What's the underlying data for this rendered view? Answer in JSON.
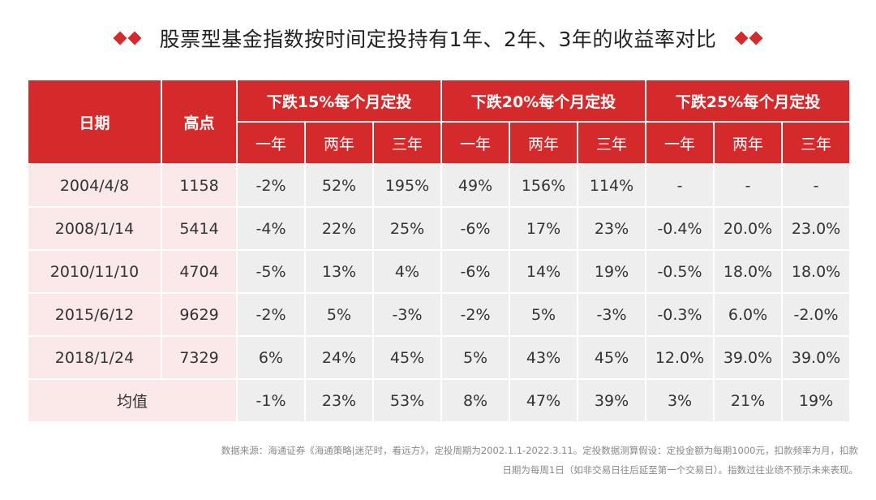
{
  "title": "股票型基金指数按时间定投持有1年、2年、3年的收益率对比",
  "table": {
    "col_date": "日期",
    "col_high": "高点",
    "groups": [
      "下跌15%每个月定投",
      "下跌20%每个月定投",
      "下跌25%每个月定投"
    ],
    "periods": [
      "一年",
      "两年",
      "三年"
    ],
    "rows": [
      {
        "date": "2004/4/8",
        "high": "1158",
        "values": [
          "-2%",
          "52%",
          "195%",
          "49%",
          "156%",
          "114%",
          "-",
          "-",
          "-"
        ]
      },
      {
        "date": "2008/1/14",
        "high": "5414",
        "values": [
          "-4%",
          "22%",
          "25%",
          "-6%",
          "17%",
          "23%",
          "-0.4%",
          "20.0%",
          "23.0%"
        ]
      },
      {
        "date": "2010/11/10",
        "high": "4704",
        "values": [
          "-5%",
          "13%",
          "4%",
          "-6%",
          "14%",
          "19%",
          "-0.5%",
          "18.0%",
          "18.0%"
        ]
      },
      {
        "date": "2015/6/12",
        "high": "9629",
        "values": [
          "-2%",
          "5%",
          "-3%",
          "-2%",
          "5%",
          "-3%",
          "-0.3%",
          "6.0%",
          "-2.0%"
        ]
      },
      {
        "date": "2018/1/24",
        "high": "7329",
        "values": [
          "6%",
          "24%",
          "45%",
          "5%",
          "43%",
          "45%",
          "12.0%",
          "39.0%",
          "39.0%"
        ]
      }
    ],
    "average": {
      "label": "均值",
      "values": [
        "-1%",
        "23%",
        "53%",
        "8%",
        "47%",
        "39%",
        "3%",
        "21%",
        "19%"
      ]
    }
  },
  "footnote": {
    "line1": "数据来源：海通证券《海通策略|迷茫时，看远方》，定投周期为2002.1.1-2022.3.11。定投数据测算假设：定投金额为每期1000元，扣款频率为月，扣款",
    "line2": "日期为每周1日（如非交易日往后延至第一个交易日）。指数过往业绩不预示未来表现。"
  },
  "colors": {
    "header_red": "#d42a2c",
    "pink_cell": "#fbe8e8",
    "gray_cell": "#eeeeee"
  }
}
